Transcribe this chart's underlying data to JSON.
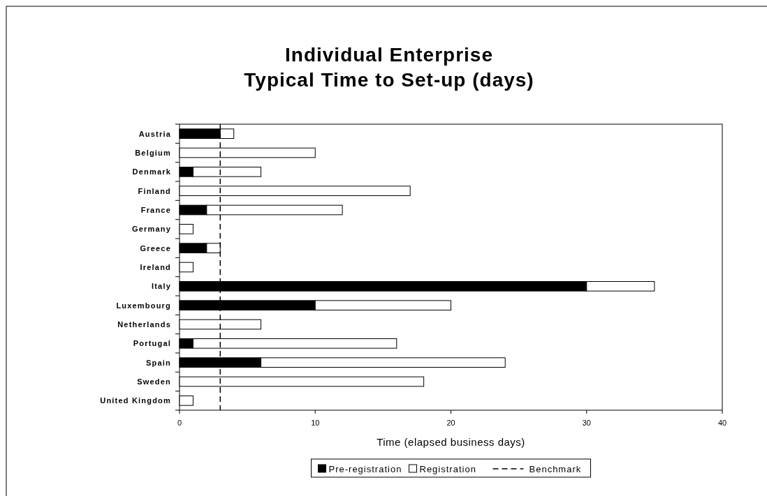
{
  "chart_data": {
    "type": "bar",
    "title": "Individual Enterprise\nTypical Time to Set-up (days)",
    "xlabel": "Time (elapsed business days)",
    "orientation": "horizontal",
    "stacked": true,
    "categories": [
      "Austria",
      "Belgium",
      "Denmark",
      "Finland",
      "France",
      "Germany",
      "Greece",
      "Ireland",
      "Italy",
      "Luxembourg",
      "Netherlands",
      "Portugal",
      "Spain",
      "Sweden",
      "United Kingdom"
    ],
    "series": [
      {
        "name": "Pre-registration",
        "color": "#000000",
        "values": [
          3,
          0,
          1,
          0,
          2,
          0,
          2,
          0,
          30,
          10,
          0,
          1,
          6,
          0,
          0
        ]
      },
      {
        "name": "Registration",
        "color": "#ffffff",
        "values": [
          1,
          10,
          5,
          17,
          10,
          1,
          1,
          1,
          5,
          10,
          6,
          15,
          18,
          18,
          1
        ]
      }
    ],
    "xlim": [
      0,
      40
    ],
    "xticks": [
      0,
      10,
      20,
      30,
      40
    ],
    "ref_lines": [
      {
        "axis": "x",
        "value": 3,
        "label": "Benchmark",
        "color": "#000000",
        "line_style": "dashed"
      }
    ],
    "legend": "bottom",
    "grid": false
  }
}
